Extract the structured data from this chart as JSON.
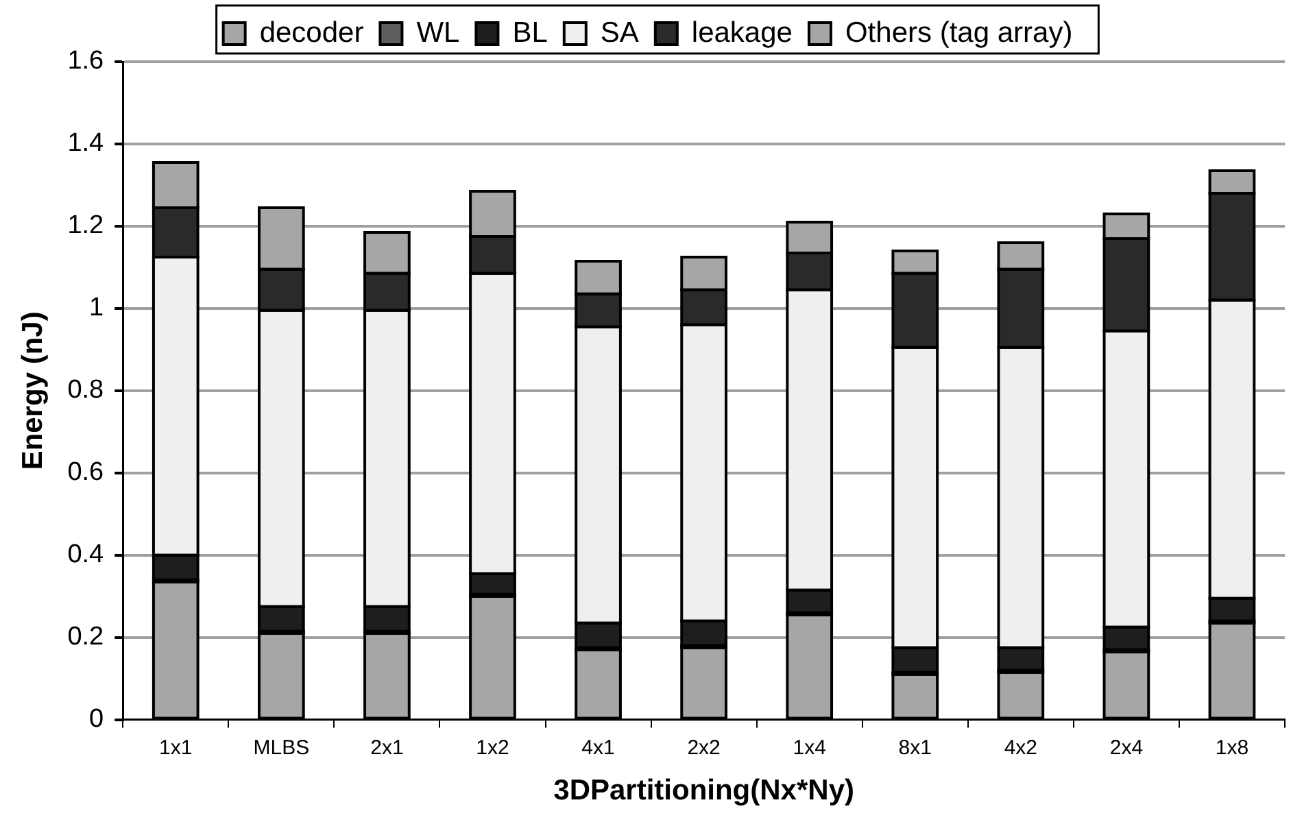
{
  "chart_data": {
    "type": "bar",
    "stacked": true,
    "xlabel": "3DPartitioning(Nx*Ny)",
    "ylabel": "Energy (nJ)",
    "categories": [
      "1x1",
      "MLBS",
      "2x1",
      "1x2",
      "4x1",
      "2x2",
      "1x4",
      "8x1",
      "4x2",
      "2x4",
      "1x8"
    ],
    "series": [
      {
        "name": "decoder",
        "color": "#a6a6a6",
        "values": [
          0.335,
          0.21,
          0.21,
          0.3,
          0.17,
          0.175,
          0.255,
          0.11,
          0.115,
          0.165,
          0.235
        ]
      },
      {
        "name": "WL",
        "color": "#5e5e5e",
        "values": [
          0.005,
          0.005,
          0.005,
          0.005,
          0.005,
          0.005,
          0.005,
          0.005,
          0.005,
          0.005,
          0.005
        ]
      },
      {
        "name": "BL",
        "color": "#1e1e1e",
        "values": [
          0.06,
          0.06,
          0.06,
          0.05,
          0.06,
          0.06,
          0.055,
          0.06,
          0.055,
          0.055,
          0.055
        ]
      },
      {
        "name": "SA",
        "color": "#efefef",
        "values": [
          0.725,
          0.72,
          0.72,
          0.73,
          0.72,
          0.72,
          0.73,
          0.73,
          0.73,
          0.72,
          0.725
        ]
      },
      {
        "name": "leakage",
        "color": "#2a2a2a",
        "values": [
          0.12,
          0.1,
          0.09,
          0.09,
          0.08,
          0.085,
          0.09,
          0.18,
          0.19,
          0.225,
          0.26
        ]
      },
      {
        "name": "Others (tag array)",
        "color": "#a6a6a6",
        "values": [
          0.11,
          0.15,
          0.1,
          0.11,
          0.08,
          0.08,
          0.075,
          0.055,
          0.065,
          0.06,
          0.055
        ]
      }
    ],
    "ylim": [
      0,
      1.6
    ],
    "yticks": [
      0,
      0.2,
      0.4,
      0.6,
      0.8,
      1,
      1.2,
      1.4,
      1.6
    ],
    "grid": "y",
    "legend": "top"
  }
}
